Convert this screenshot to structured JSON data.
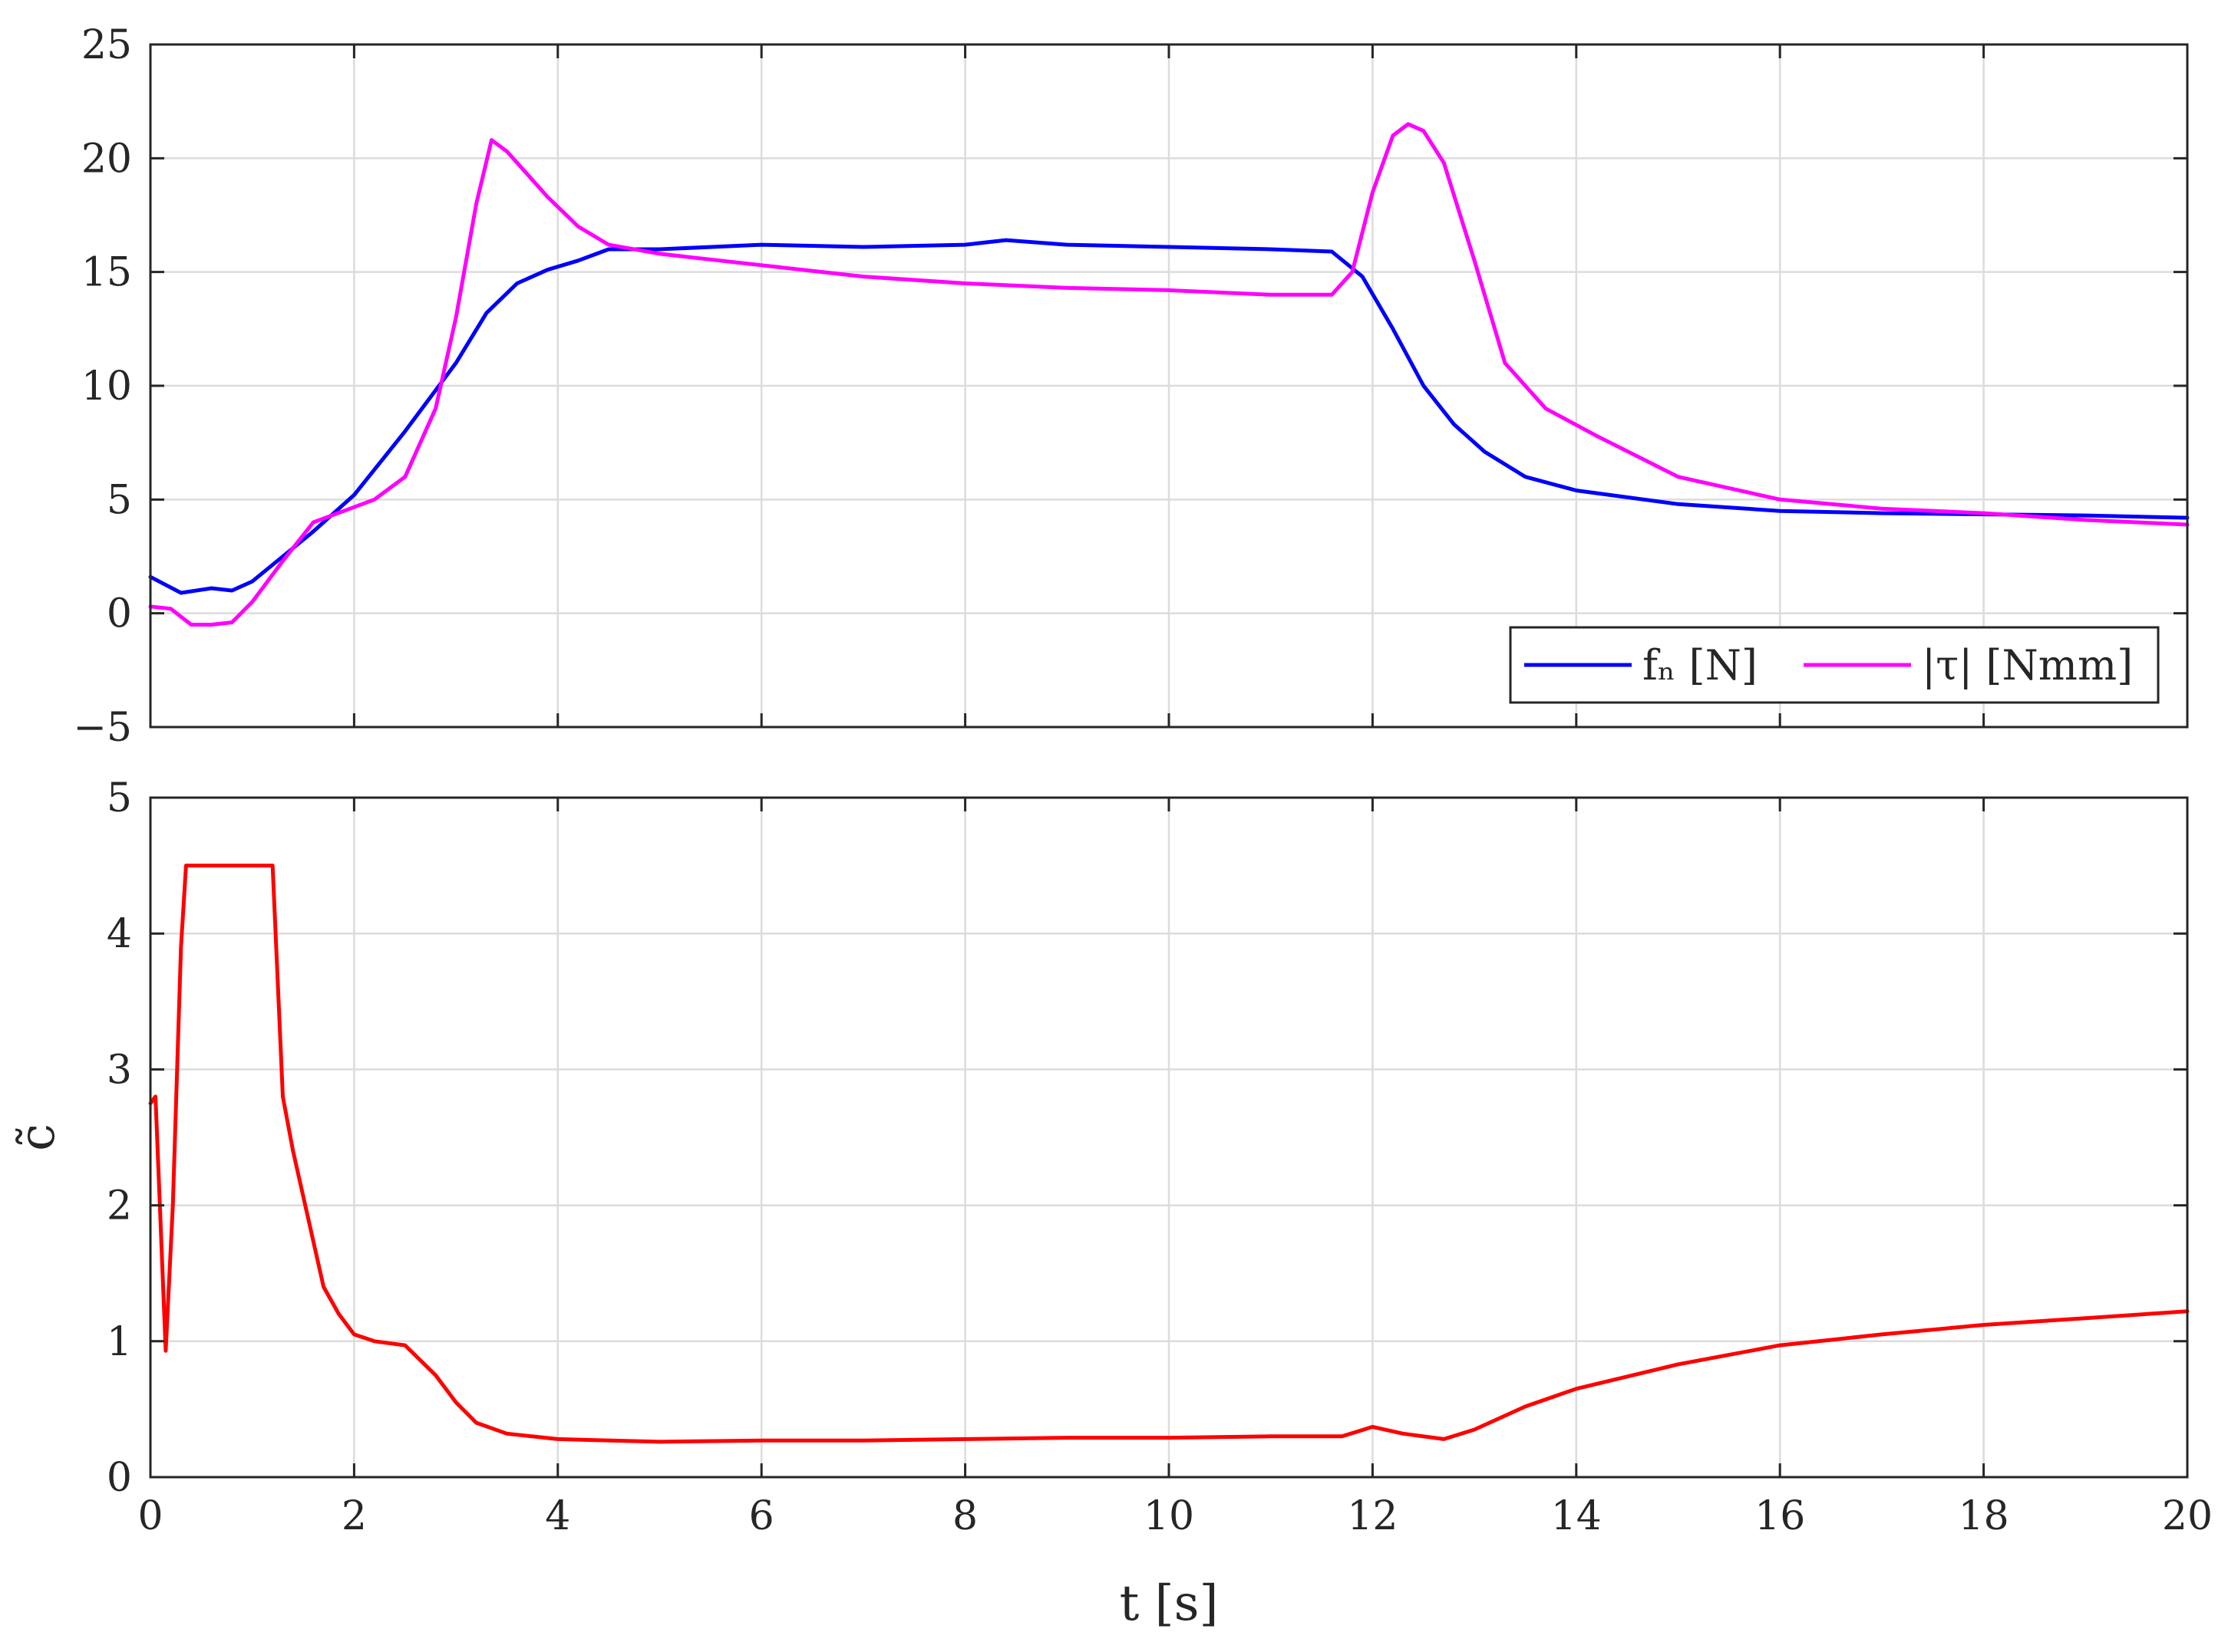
{
  "colors": {
    "fn": "#0000ff",
    "tau": "#ff00ff",
    "c": "#ff0000",
    "axis": "#262626",
    "grid": "#dcdcdc"
  },
  "chart_data": [
    {
      "type": "line",
      "xlim": [
        0,
        20
      ],
      "ylim": [
        -5,
        25
      ],
      "xticks": [
        "0",
        "2",
        "4",
        "6",
        "8",
        "10",
        "12",
        "14",
        "16",
        "18",
        "20"
      ],
      "yticks": [
        "−5",
        "0",
        "5",
        "10",
        "15",
        "20",
        "25"
      ],
      "xlabel": "",
      "ylabel": "",
      "grid": true,
      "legend": {
        "placement": "bottom-right",
        "orientation": "horizontal",
        "entries": [
          "fₙ [N]",
          "|τ| [Nmm]"
        ]
      },
      "series": [
        {
          "name": "fₙ [N]",
          "color": "#0000ff",
          "x": [
            0,
            0.3,
            0.6,
            0.8,
            1.0,
            1.3,
            1.6,
            2.0,
            2.5,
            3.0,
            3.3,
            3.6,
            3.9,
            4.2,
            4.5,
            5,
            6,
            7,
            8,
            8.4,
            9,
            10,
            11,
            11.6,
            11.9,
            12.2,
            12.5,
            12.8,
            13.1,
            13.5,
            14,
            15,
            16,
            17,
            18,
            19,
            20
          ],
          "y": [
            1.6,
            0.9,
            1.1,
            1.0,
            1.4,
            2.5,
            3.6,
            5.2,
            8.0,
            11.0,
            13.2,
            14.5,
            15.1,
            15.5,
            16.0,
            16.0,
            16.2,
            16.1,
            16.2,
            16.4,
            16.2,
            16.1,
            16.0,
            15.9,
            14.8,
            12.5,
            10.0,
            8.3,
            7.1,
            6.0,
            5.4,
            4.8,
            4.5,
            4.4,
            4.35,
            4.3,
            4.2
          ]
        },
        {
          "name": "|τ| [Nmm]",
          "color": "#ff00ff",
          "x": [
            0,
            0.2,
            0.4,
            0.6,
            0.8,
            1.0,
            1.3,
            1.6,
            1.9,
            2.2,
            2.5,
            2.8,
            3.0,
            3.2,
            3.35,
            3.5,
            3.7,
            3.9,
            4.2,
            4.5,
            5,
            6,
            7,
            8,
            9,
            10,
            11,
            11.6,
            11.8,
            12.0,
            12.2,
            12.35,
            12.5,
            12.7,
            13.0,
            13.3,
            13.7,
            14.2,
            15,
            16,
            17,
            18,
            19,
            20
          ],
          "y": [
            0.3,
            0.2,
            -0.5,
            -0.5,
            -0.4,
            0.5,
            2.3,
            4.0,
            4.5,
            5.0,
            6.0,
            9.0,
            13.0,
            18.0,
            20.8,
            20.3,
            19.3,
            18.3,
            17.0,
            16.2,
            15.8,
            15.3,
            14.8,
            14.5,
            14.3,
            14.2,
            14.0,
            14.0,
            15.0,
            18.5,
            21.0,
            21.5,
            21.2,
            19.8,
            15.5,
            11.0,
            9.0,
            7.8,
            6.0,
            5.0,
            4.6,
            4.4,
            4.1,
            3.9
          ]
        }
      ]
    },
    {
      "type": "line",
      "xlim": [
        0,
        20
      ],
      "ylim": [
        0,
        5
      ],
      "xticks": [
        "0",
        "2",
        "4",
        "6",
        "8",
        "10",
        "12",
        "14",
        "16",
        "18",
        "20"
      ],
      "yticks": [
        "0",
        "1",
        "2",
        "3",
        "4",
        "5"
      ],
      "xlabel": "t [s]",
      "ylabel": "c̃",
      "grid": true,
      "series": [
        {
          "color": "#ff0000",
          "x": [
            0,
            0.05,
            0.15,
            0.22,
            0.3,
            0.35,
            1.2,
            1.3,
            1.4,
            1.55,
            1.7,
            1.85,
            2.0,
            2.2,
            2.5,
            2.8,
            3.0,
            3.2,
            3.5,
            4.0,
            5,
            6,
            7,
            8,
            9,
            10,
            11,
            11.7,
            12.0,
            12.3,
            12.7,
            13.0,
            13.5,
            14,
            15,
            16,
            17,
            18,
            19,
            20
          ],
          "y": [
            2.75,
            2.8,
            0.93,
            2.0,
            3.9,
            4.5,
            4.5,
            2.8,
            2.4,
            1.9,
            1.4,
            1.2,
            1.05,
            1.0,
            0.97,
            0.75,
            0.55,
            0.4,
            0.32,
            0.28,
            0.26,
            0.27,
            0.27,
            0.28,
            0.29,
            0.29,
            0.3,
            0.3,
            0.37,
            0.32,
            0.28,
            0.35,
            0.52,
            0.65,
            0.83,
            0.97,
            1.05,
            1.12,
            1.17,
            1.22
          ]
        }
      ]
    }
  ]
}
